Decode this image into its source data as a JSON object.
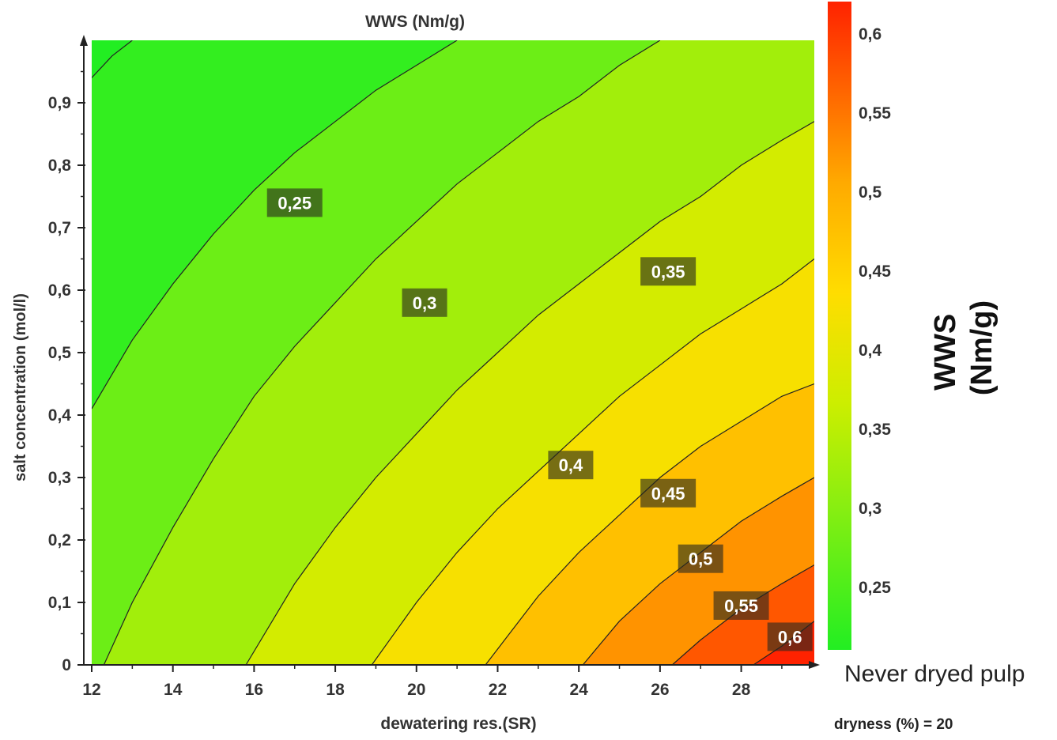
{
  "chart_data": {
    "type": "heatmap",
    "subtype": "contour",
    "title": "WWS (Nm/g)",
    "xlabel": "dewatering res.(SR)",
    "ylabel": "salt concentration (mol/l)",
    "xlim": [
      12,
      29.8
    ],
    "ylim": [
      0,
      1.0
    ],
    "x_ticks": [
      "12",
      "14",
      "16",
      "18",
      "20",
      "22",
      "24",
      "26",
      "28"
    ],
    "y_ticks": [
      "0",
      "0,1",
      "0,2",
      "0,3",
      "0,4",
      "0,5",
      "0,6",
      "0,7",
      "0,8",
      "0,9"
    ],
    "colorbar": {
      "label": "WWS (Nm/g)",
      "range": [
        0.21,
        0.62
      ],
      "ticks": [
        "0,25",
        "0,3",
        "0,35",
        "0,4",
        "0,45",
        "0,5",
        "0,55",
        "0,6"
      ],
      "colors": [
        "#22ee22",
        "#88ee11",
        "#ccee00",
        "#ffdd00",
        "#ffaa00",
        "#ff6600",
        "#ff2200"
      ]
    },
    "contour_levels": [
      "0,25",
      "0,3",
      "0,35",
      "0,4",
      "0,45",
      "0,5",
      "0,55",
      "0,6"
    ],
    "contour_lines": [
      {
        "level": 0.2,
        "points": [
          [
            12.0,
            0.94
          ],
          [
            12.5,
            0.975
          ],
          [
            13.0,
            1.0
          ]
        ]
      },
      {
        "level": 0.25,
        "points": [
          [
            12.0,
            0.41
          ],
          [
            13.0,
            0.52
          ],
          [
            14.0,
            0.61
          ],
          [
            15.0,
            0.69
          ],
          [
            16.0,
            0.76
          ],
          [
            17.0,
            0.82
          ],
          [
            18.0,
            0.87
          ],
          [
            19.0,
            0.92
          ],
          [
            20.0,
            0.96
          ],
          [
            21.0,
            1.0
          ]
        ]
      },
      {
        "level": 0.3,
        "points": [
          [
            12.3,
            0.0
          ],
          [
            13.0,
            0.1
          ],
          [
            14.0,
            0.22
          ],
          [
            15.0,
            0.33
          ],
          [
            16.0,
            0.43
          ],
          [
            17.0,
            0.51
          ],
          [
            18.0,
            0.58
          ],
          [
            19.0,
            0.65
          ],
          [
            20.0,
            0.71
          ],
          [
            21.0,
            0.77
          ],
          [
            22.0,
            0.82
          ],
          [
            23.0,
            0.87
          ],
          [
            24.0,
            0.91
          ],
          [
            25.0,
            0.96
          ],
          [
            26.0,
            1.0
          ]
        ]
      },
      {
        "level": 0.35,
        "points": [
          [
            15.8,
            0.0
          ],
          [
            17.0,
            0.13
          ],
          [
            18.0,
            0.22
          ],
          [
            19.0,
            0.3
          ],
          [
            20.0,
            0.37
          ],
          [
            21.0,
            0.44
          ],
          [
            22.0,
            0.5
          ],
          [
            23.0,
            0.56
          ],
          [
            24.0,
            0.61
          ],
          [
            25.0,
            0.66
          ],
          [
            26.0,
            0.71
          ],
          [
            27.0,
            0.75
          ],
          [
            28.0,
            0.8
          ],
          [
            29.0,
            0.84
          ],
          [
            29.8,
            0.87
          ]
        ]
      },
      {
        "level": 0.4,
        "points": [
          [
            18.9,
            0.0
          ],
          [
            20.0,
            0.1
          ],
          [
            21.0,
            0.18
          ],
          [
            22.0,
            0.25
          ],
          [
            23.0,
            0.31
          ],
          [
            24.0,
            0.37
          ],
          [
            25.0,
            0.43
          ],
          [
            26.0,
            0.48
          ],
          [
            27.0,
            0.53
          ],
          [
            28.0,
            0.57
          ],
          [
            29.0,
            0.61
          ],
          [
            29.8,
            0.65
          ]
        ]
      },
      {
        "level": 0.45,
        "points": [
          [
            21.7,
            0.0
          ],
          [
            23.0,
            0.11
          ],
          [
            24.0,
            0.18
          ],
          [
            25.0,
            0.24
          ],
          [
            26.0,
            0.3
          ],
          [
            27.0,
            0.35
          ],
          [
            28.0,
            0.39
          ],
          [
            29.0,
            0.43
          ],
          [
            29.8,
            0.45
          ]
        ]
      },
      {
        "level": 0.5,
        "points": [
          [
            24.1,
            0.0
          ],
          [
            25.0,
            0.07
          ],
          [
            26.0,
            0.13
          ],
          [
            27.0,
            0.18
          ],
          [
            28.0,
            0.23
          ],
          [
            29.0,
            0.27
          ],
          [
            29.8,
            0.3
          ]
        ]
      },
      {
        "level": 0.55,
        "points": [
          [
            26.3,
            0.0
          ],
          [
            27.0,
            0.04
          ],
          [
            28.0,
            0.09
          ],
          [
            29.0,
            0.13
          ],
          [
            29.8,
            0.16
          ]
        ]
      },
      {
        "level": 0.6,
        "points": [
          [
            28.3,
            0.0
          ],
          [
            29.0,
            0.03
          ],
          [
            29.8,
            0.07
          ]
        ]
      }
    ],
    "contour_labels": [
      {
        "text": "0,25",
        "x": 17.0,
        "y": 0.74
      },
      {
        "text": "0,3",
        "x": 20.2,
        "y": 0.58
      },
      {
        "text": "0,35",
        "x": 26.2,
        "y": 0.63
      },
      {
        "text": "0,4",
        "x": 23.8,
        "y": 0.32
      },
      {
        "text": "0,45",
        "x": 26.2,
        "y": 0.275
      },
      {
        "text": "0,5",
        "x": 27.0,
        "y": 0.17
      },
      {
        "text": "0,55",
        "x": 28.0,
        "y": 0.095
      },
      {
        "text": "0,6",
        "x": 29.2,
        "y": 0.045
      }
    ]
  },
  "notes": {
    "pulp": "Never dryed pulp",
    "dryness": "dryness (%) = 20"
  }
}
